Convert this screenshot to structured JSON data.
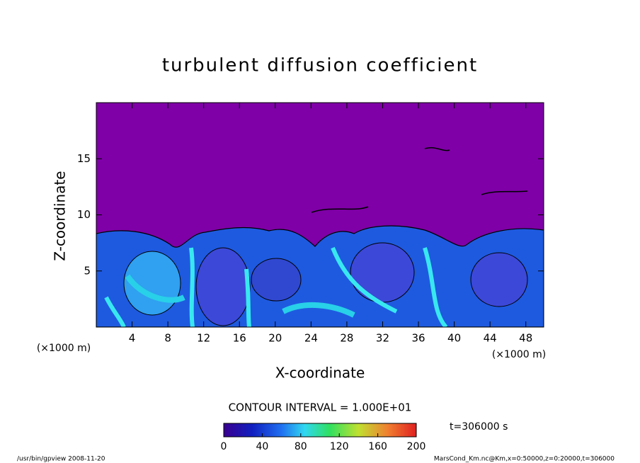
{
  "chart_data": {
    "type": "contour",
    "title": "turbulent diffusion coefficient",
    "x_label": "X-coordinate",
    "y_label": "Z-coordinate",
    "x_unit": "(×1000 m)",
    "y_unit": "(×1000 m)",
    "xlim": [
      0,
      50
    ],
    "xticks": [
      4,
      8,
      12,
      16,
      20,
      24,
      28,
      32,
      36,
      40,
      44,
      48
    ],
    "ylim": [
      0,
      20
    ],
    "yticks": [
      5,
      10,
      15
    ],
    "contour_interval": "CONTOUR INTERVAL = 1.000E+01",
    "colorbar": {
      "lim": [
        0,
        200
      ],
      "ticks": [
        0,
        40,
        80,
        120,
        160,
        200
      ]
    },
    "time": "t=306000 s",
    "footer_left": "/usr/bin/gpview  2008-11-20",
    "footer_right": "MarsCond_Km.nc@Km,x=0:50000,z=0:20000,t=306000"
  }
}
